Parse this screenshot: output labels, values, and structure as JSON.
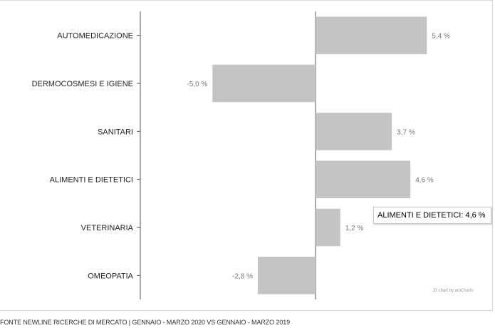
{
  "chart_data": {
    "type": "bar",
    "orientation": "horizontal",
    "categories": [
      "AUTOMEDICAZIONE",
      "DERMOCOSMESI E IGIENE",
      "SANITARI",
      "ALIMENTI E DIETETICI",
      "VETERINARIA",
      "OMEOPATIA"
    ],
    "values": [
      5.4,
      -5.0,
      3.7,
      4.6,
      1.2,
      -2.8
    ],
    "value_labels": [
      "5,4 %",
      "-5,0 %",
      "3,7 %",
      "4,6 %",
      "1,2 %",
      "-2,8 %"
    ],
    "xlim": [
      -8.5,
      8.6
    ],
    "bar_color": "#c4c4c4",
    "axis_color": "#555555",
    "grid": false,
    "legend": false,
    "title": "",
    "xlabel": "",
    "ylabel": ""
  },
  "tooltip": {
    "text": "ALIMENTI E DIETETICI: 4,6 %"
  },
  "credit": "JS chart by amCharts",
  "footer": "FONTE NEWLINE RICERCHE DI MERCATO  |  GENNAIO - MARZO 2020 VS GENNAIO - MARZO 2019"
}
